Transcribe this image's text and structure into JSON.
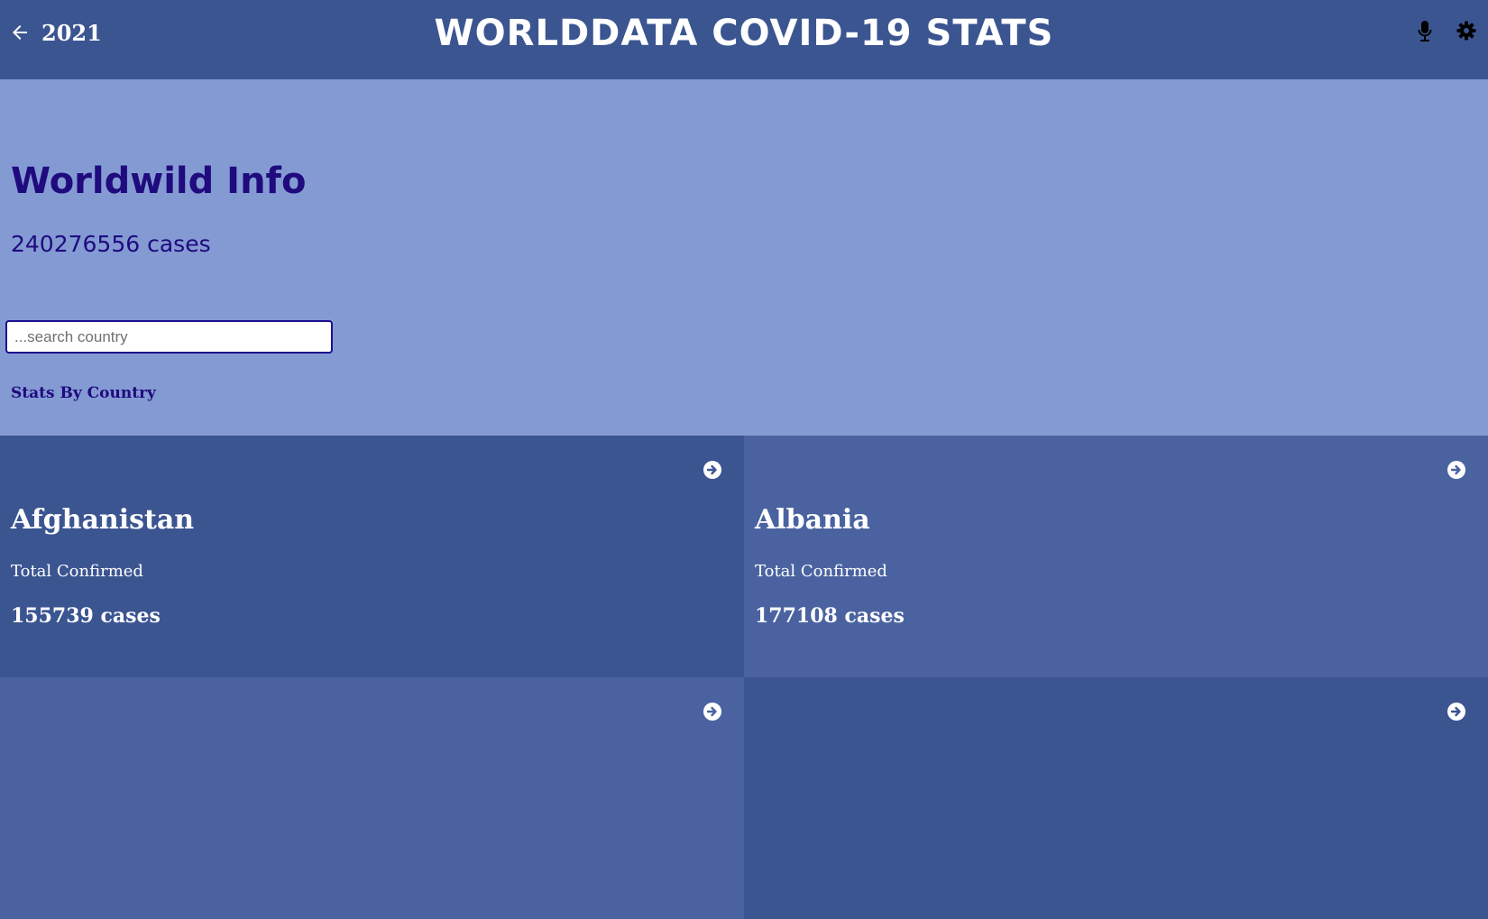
{
  "header": {
    "year": "2021",
    "title": "WORLDDATA COVID-19 STATS",
    "icons": {
      "back": "arrow-left-icon",
      "mic": "microphone-icon",
      "settings": "gear-icon"
    }
  },
  "hero": {
    "title": "Worldwild Info",
    "count": "240276556 cases",
    "search_placeholder": "...search country",
    "section_label": "Stats By Country"
  },
  "cards": [
    {
      "name": "Afghanistan",
      "label": "Total Confirmed",
      "value": "155739 cases"
    },
    {
      "name": "Albania",
      "label": "Total Confirmed",
      "value": "177108 cases"
    },
    {
      "name": "",
      "label": "",
      "value": ""
    },
    {
      "name": "",
      "label": "",
      "value": ""
    }
  ],
  "colors": {
    "header": "#3b5591",
    "hero_bg": "#849ad3",
    "hero_text": "#1f0a7e",
    "card_dark": "#3b5591",
    "card_light": "#4a63a0"
  }
}
